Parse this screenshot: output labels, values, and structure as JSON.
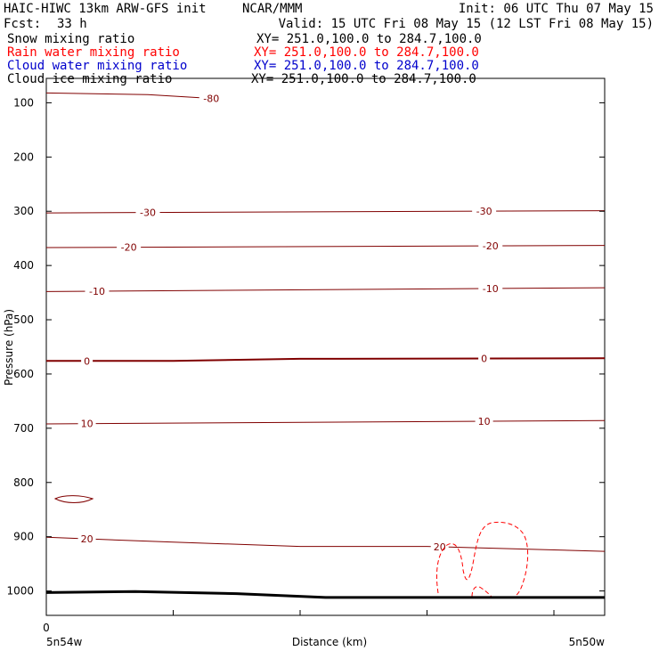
{
  "header": {
    "model": "HAIC-HIWC 13km ARW-GFS init",
    "org": "NCAR/MMM",
    "init": "Init: 06 UTC Thu 07 May 15",
    "fcst_label": "Fcst:",
    "fcst_value": "33 h",
    "valid": "Valid: 15 UTC Fri 08 May 15 (12 LST Fri 08 May 15)"
  },
  "legend": [
    {
      "name": "Snow mixing ratio",
      "color": "#000000",
      "xy": "XY= 251.0,100.0 to 284.7,100.0"
    },
    {
      "name": "Rain water mixing ratio",
      "color": "#ff0000",
      "xy": "XY= 251.0,100.0 to 284.7,100.0"
    },
    {
      "name": "Cloud water mixing ratio",
      "color": "#0000cc",
      "xy": "XY= 251.0,100.0 to 284.7,100.0"
    },
    {
      "name": "Cloud ice mixing ratio",
      "color": "#000000",
      "xy": "XY= 251.0,100.0 to 284.7,100.0"
    }
  ],
  "colors": {
    "isotherm": "#800000",
    "rain": "#ff0000",
    "terrain": "#000000"
  },
  "chart_data": {
    "type": "line",
    "ylabel": "Pressure (hPa)",
    "xlabel": "Distance (km)",
    "x_start_label": "5n54w",
    "x_end_label": "5n50w",
    "x_zero_label": "0",
    "y_ticks": [
      100,
      200,
      300,
      400,
      500,
      600,
      700,
      800,
      900,
      1000
    ],
    "y_range_hpa": [
      55,
      1045
    ],
    "x_range_km": [
      0,
      440
    ],
    "x_ticks_km": [
      0,
      100,
      200,
      300,
      400
    ],
    "isotherms": [
      {
        "label": "-80",
        "points": [
          [
            0,
            82
          ],
          [
            80,
            85
          ],
          [
            130,
            92
          ]
        ],
        "labels_at_km": [
          130
        ]
      },
      {
        "label": "-30",
        "points": [
          [
            0,
            303
          ],
          [
            440,
            299
          ]
        ],
        "labels_at_km": [
          80,
          345
        ]
      },
      {
        "label": "-20",
        "points": [
          [
            0,
            367
          ],
          [
            440,
            363
          ]
        ],
        "labels_at_km": [
          65,
          350
        ]
      },
      {
        "label": "-10",
        "points": [
          [
            0,
            448
          ],
          [
            440,
            441
          ]
        ],
        "labels_at_km": [
          40,
          350
        ]
      },
      {
        "label": "0",
        "points": [
          [
            0,
            576
          ],
          [
            100,
            576
          ],
          [
            200,
            572
          ],
          [
            440,
            571
          ]
        ],
        "labels_at_km": [
          32,
          345
        ],
        "bold": true
      },
      {
        "label": "10",
        "points": [
          [
            0,
            692
          ],
          [
            440,
            686
          ]
        ],
        "labels_at_km": [
          32,
          345
        ]
      },
      {
        "label": "20",
        "points": [
          [
            0,
            901
          ],
          [
            100,
            910
          ],
          [
            200,
            918
          ],
          [
            300,
            918
          ],
          [
            440,
            927
          ]
        ],
        "labels_at_km": [
          32,
          310
        ]
      }
    ],
    "terrain_profile": [
      [
        0,
        1003
      ],
      [
        70,
        1001
      ],
      [
        150,
        1005
      ],
      [
        220,
        1012
      ],
      [
        440,
        1012
      ]
    ]
  }
}
